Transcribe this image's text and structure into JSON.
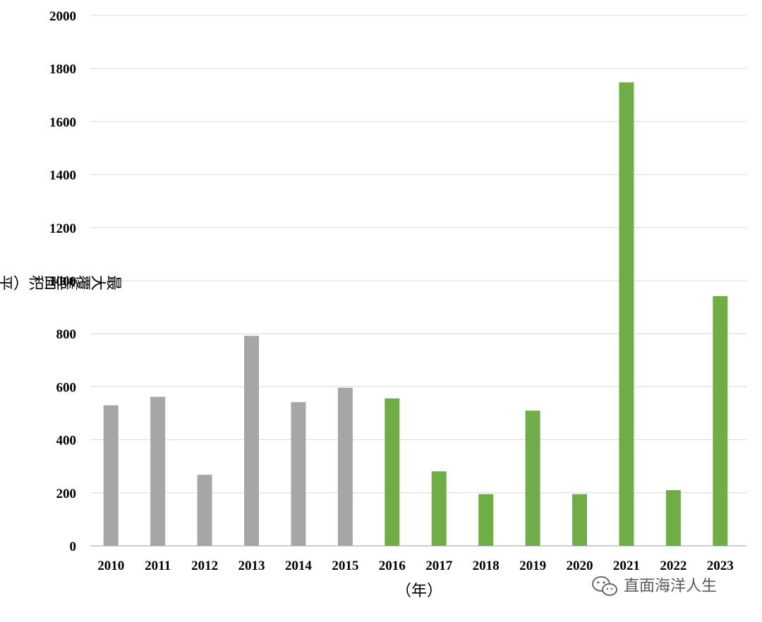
{
  "chart_data": {
    "type": "bar",
    "title": "",
    "xlabel": "（年）",
    "ylabel": "最大覆盖面积（平方公里）",
    "categories": [
      "2010",
      "2011",
      "2012",
      "2013",
      "2014",
      "2015",
      "2016",
      "2017",
      "2018",
      "2019",
      "2020",
      "2021",
      "2022",
      "2023"
    ],
    "values": [
      530,
      562,
      268,
      792,
      542,
      596,
      556,
      281,
      195,
      510,
      195,
      1748,
      210,
      942
    ],
    "bar_colors": [
      "#a6a6a6",
      "#a6a6a6",
      "#a6a6a6",
      "#a6a6a6",
      "#a6a6a6",
      "#a6a6a6",
      "#70ad47",
      "#70ad47",
      "#70ad47",
      "#70ad47",
      "#70ad47",
      "#70ad47",
      "#70ad47",
      "#70ad47"
    ],
    "ylim": [
      0,
      2000
    ],
    "yticks": [
      0,
      200,
      400,
      600,
      800,
      1000,
      1200,
      1400,
      1600,
      1800,
      2000
    ],
    "grid": true,
    "legend": "none"
  },
  "watermark": {
    "text": "直面海洋人生",
    "icon": "wechat-icon"
  }
}
